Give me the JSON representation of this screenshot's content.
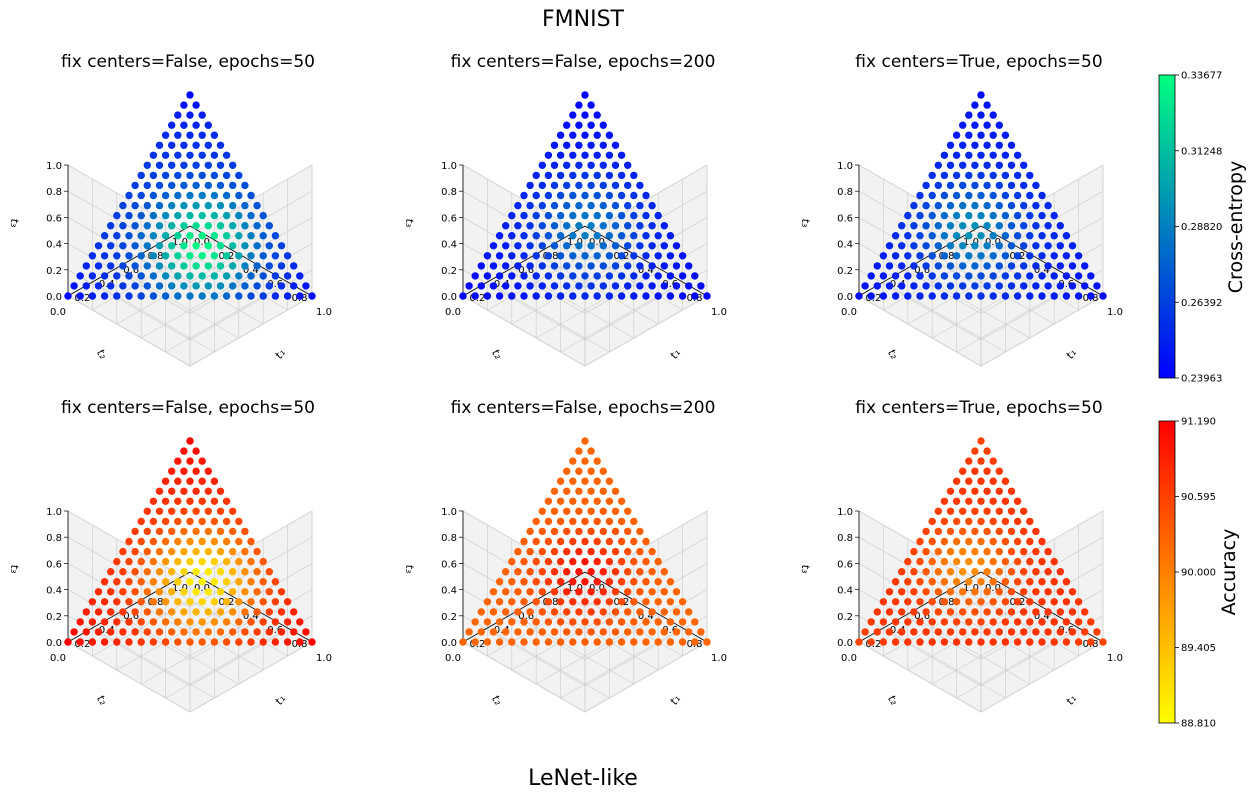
{
  "figure": {
    "suptitle": "FMNIST",
    "bottom_title": "LeNet-like"
  },
  "chart_data": [
    {
      "type": "scatter",
      "title": "fix centers=False, epochs=50",
      "metric": "Cross-entropy",
      "xlabel": "t₁",
      "ylabel": "t₂",
      "zlabel": "t₃",
      "ticks": [
        "0.0",
        "0.2",
        "0.4",
        "0.6",
        "0.8",
        "1.0"
      ],
      "grid_steps": 20,
      "field": {
        "base": 0.26,
        "max": 0.335,
        "peak_b": [
          0.42,
          0.33,
          0.25
        ],
        "sigma": 0.3,
        "corner_drop": 0.018
      }
    },
    {
      "type": "scatter",
      "title": "fix centers=False, epochs=200",
      "metric": "Cross-entropy",
      "xlabel": "t₁",
      "ylabel": "t₂",
      "zlabel": "t₃",
      "ticks": [
        "0.0",
        "0.2",
        "0.4",
        "0.6",
        "0.8",
        "1.0"
      ],
      "grid_steps": 20,
      "field": {
        "base": 0.248,
        "max": 0.288,
        "peak_b": [
          0.34,
          0.33,
          0.33
        ],
        "sigma": 0.3,
        "corner_drop": 0.008
      }
    },
    {
      "type": "scatter",
      "title": "fix centers=True, epochs=50",
      "metric": "Cross-entropy",
      "xlabel": "t₁",
      "ylabel": "t₂",
      "zlabel": "t₃",
      "ticks": [
        "0.0",
        "0.2",
        "0.4",
        "0.6",
        "0.8",
        "1.0"
      ],
      "grid_steps": 20,
      "field": {
        "base": 0.252,
        "max": 0.296,
        "peak_b": [
          0.3,
          0.38,
          0.32
        ],
        "sigma": 0.28,
        "corner_drop": 0.008
      }
    },
    {
      "type": "scatter",
      "title": "fix centers=False, epochs=50",
      "metric": "Accuracy",
      "xlabel": "t₁",
      "ylabel": "t₂",
      "zlabel": "t₃",
      "ticks": [
        "0.0",
        "0.2",
        "0.4",
        "0.6",
        "0.8",
        "1.0"
      ],
      "grid_steps": 20,
      "field": {
        "base": 90.75,
        "max": 88.9,
        "peak_b": [
          0.4,
          0.3,
          0.3
        ],
        "sigma": 0.3,
        "corner_drop": -0.45
      }
    },
    {
      "type": "scatter",
      "title": "fix centers=False, epochs=200",
      "metric": "Accuracy",
      "xlabel": "t₁",
      "ylabel": "t₂",
      "zlabel": "t₃",
      "ticks": [
        "0.0",
        "0.2",
        "0.4",
        "0.6",
        "0.8",
        "1.0"
      ],
      "grid_steps": 20,
      "field": {
        "base": 90.25,
        "max": 91.05,
        "peak_b": [
          0.33,
          0.34,
          0.33
        ],
        "sigma": 0.25,
        "corner_drop": 0.0
      }
    },
    {
      "type": "scatter",
      "title": "fix centers=True, epochs=50",
      "metric": "Accuracy",
      "xlabel": "t₁",
      "ylabel": "t₂",
      "zlabel": "t₃",
      "ticks": [
        "0.0",
        "0.2",
        "0.4",
        "0.6",
        "0.8",
        "1.0"
      ],
      "grid_steps": 20,
      "field": {
        "base": 90.75,
        "max": 89.85,
        "peak_b": [
          0.26,
          0.37,
          0.37
        ],
        "sigma": 0.26,
        "corner_drop": 0.2
      }
    }
  ],
  "colorbars": [
    {
      "label": "Cross-entropy",
      "colormap": "winter",
      "vmin": 0.23963,
      "vmax": 0.33677,
      "ticks": [
        "0.23963",
        "0.26392",
        "0.28820",
        "0.31248",
        "0.33677"
      ],
      "stops": [
        "#0000ff",
        "#00ff80"
      ]
    },
    {
      "label": "Accuracy",
      "colormap": "autumn_r",
      "vmin": 88.81,
      "vmax": 91.19,
      "ticks": [
        "88.810",
        "89.405",
        "90.000",
        "90.595",
        "91.190"
      ],
      "stops": [
        "#ffff00",
        "#ff0000"
      ]
    }
  ]
}
